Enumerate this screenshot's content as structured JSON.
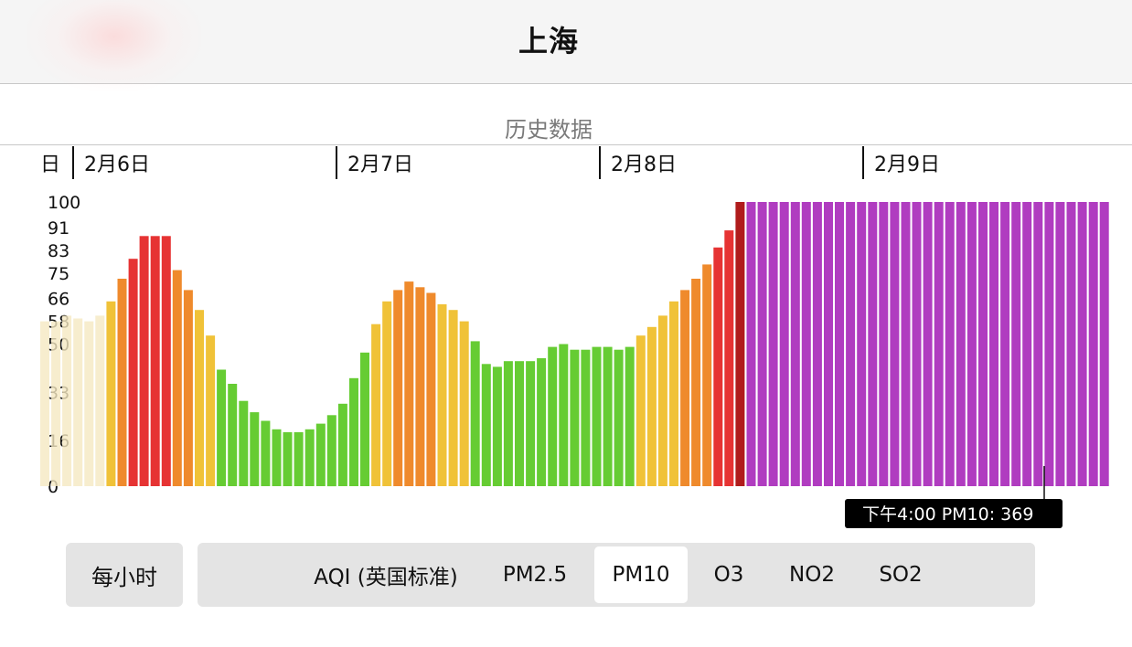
{
  "header": {
    "title": "上海"
  },
  "section": {
    "title": "历史数据"
  },
  "dates": [
    "日",
    "2月6日",
    "2月7日",
    "2月8日",
    "2月9日"
  ],
  "tooltip": {
    "text": "下午4:00 PM10: 369"
  },
  "controls": {
    "interval_label": "每小时",
    "pollutants": [
      "AQI (英国标准)",
      "PM2.5",
      "PM10",
      "O3",
      "NO2",
      "SO2"
    ],
    "selected": "PM10"
  },
  "chart_data": {
    "type": "bar",
    "ylim": [
      0,
      100
    ],
    "yticks": [
      "0",
      "16",
      "33",
      "50",
      "58",
      "66",
      "75",
      "83",
      "91",
      "100"
    ],
    "values": [
      58,
      58,
      60,
      59,
      58,
      60,
      65,
      73,
      80,
      88,
      88,
      88,
      76,
      69,
      62,
      53,
      41,
      36,
      30,
      26,
      23,
      20,
      19,
      19,
      20,
      22,
      25,
      29,
      38,
      47,
      57,
      65,
      69,
      72,
      70,
      68,
      64,
      62,
      58,
      51,
      43,
      42,
      44,
      44,
      44,
      45,
      49,
      50,
      48,
      48,
      49,
      49,
      48,
      49,
      53,
      56,
      60,
      65,
      69,
      73,
      78,
      84,
      90,
      100,
      100,
      100,
      100,
      100,
      100,
      100,
      100,
      100,
      100,
      100,
      100,
      100,
      100,
      100,
      100,
      100,
      100,
      100,
      100,
      100,
      100,
      100,
      100,
      100,
      100,
      100,
      100,
      100,
      100,
      100,
      100,
      100,
      100
    ],
    "colors": {
      "pale_yellow": "#f5e8c2",
      "yellow": "#f0c238",
      "orange": "#ef8a2c",
      "red": "#e63333",
      "dark_red": "#b01c1c",
      "green": "#66cc33",
      "purple": "#b03cc0"
    }
  }
}
